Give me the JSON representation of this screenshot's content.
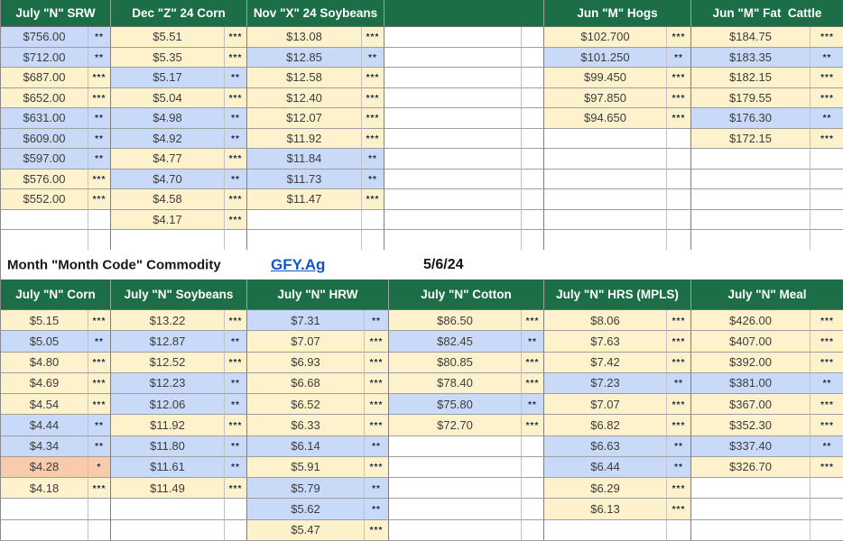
{
  "band": {
    "caption": "Month \"Month Code\" Commodity",
    "link_label": "GFY.Ag",
    "date": "5/6/24"
  },
  "colors": {
    "header_green": "#1b6e46",
    "cell_yellow": "#fdf2cc",
    "cell_blue": "#c9daf8",
    "cell_orange": "#f8cbad",
    "link_blue": "#1155cc"
  },
  "tables": [
    {
      "id": "top-futures-table",
      "rows": 11,
      "columns": [
        {
          "header": "July \"N\" SRW",
          "cells": [
            {
              "value": "$756.00",
              "stars": "**",
              "bg": "blue"
            },
            {
              "value": "$712.00",
              "stars": "**",
              "bg": "blue"
            },
            {
              "value": "$687.00",
              "stars": "***",
              "bg": "yellow"
            },
            {
              "value": "$652.00",
              "stars": "***",
              "bg": "yellow"
            },
            {
              "value": "$631.00",
              "stars": "**",
              "bg": "blue"
            },
            {
              "value": "$609.00",
              "stars": "**",
              "bg": "blue"
            },
            {
              "value": "$597.00",
              "stars": "**",
              "bg": "blue"
            },
            {
              "value": "$576.00",
              "stars": "***",
              "bg": "yellow"
            },
            {
              "value": "$552.00",
              "stars": "***",
              "bg": "yellow"
            },
            null,
            null
          ]
        },
        {
          "header": "Dec \"Z\" 24 Corn",
          "cells": [
            {
              "value": "$5.51",
              "stars": "***",
              "bg": "yellow"
            },
            {
              "value": "$5.35",
              "stars": "***",
              "bg": "yellow"
            },
            {
              "value": "$5.17",
              "stars": "**",
              "bg": "blue"
            },
            {
              "value": "$5.04",
              "stars": "***",
              "bg": "yellow"
            },
            {
              "value": "$4.98",
              "stars": "**",
              "bg": "blue"
            },
            {
              "value": "$4.92",
              "stars": "**",
              "bg": "blue"
            },
            {
              "value": "$4.77",
              "stars": "***",
              "bg": "yellow"
            },
            {
              "value": "$4.70",
              "stars": "**",
              "bg": "blue"
            },
            {
              "value": "$4.58",
              "stars": "***",
              "bg": "yellow"
            },
            {
              "value": "$4.17",
              "stars": "***",
              "bg": "yellow"
            },
            null
          ]
        },
        {
          "header": "Nov \"X\" 24 Soybeans",
          "cells": [
            {
              "value": "$13.08",
              "stars": "***",
              "bg": "yellow"
            },
            {
              "value": "$12.85",
              "stars": "**",
              "bg": "blue"
            },
            {
              "value": "$12.58",
              "stars": "***",
              "bg": "yellow"
            },
            {
              "value": "$12.40",
              "stars": "***",
              "bg": "yellow"
            },
            {
              "value": "$12.07",
              "stars": "***",
              "bg": "yellow"
            },
            {
              "value": "$11.92",
              "stars": "***",
              "bg": "yellow"
            },
            {
              "value": "$11.84",
              "stars": "**",
              "bg": "blue"
            },
            {
              "value": "$11.73",
              "stars": "**",
              "bg": "blue"
            },
            {
              "value": "$11.47",
              "stars": "***",
              "bg": "yellow"
            },
            null,
            null
          ]
        },
        {
          "header": "",
          "cells": [
            null,
            null,
            null,
            null,
            null,
            null,
            null,
            null,
            null,
            null,
            null
          ]
        },
        {
          "header": "Jun \"M\" Hogs",
          "cells": [
            {
              "value": "$102.700",
              "stars": "***",
              "bg": "yellow"
            },
            {
              "value": "$101.250",
              "stars": "**",
              "bg": "blue"
            },
            {
              "value": "$99.450",
              "stars": "***",
              "bg": "yellow"
            },
            {
              "value": "$97.850",
              "stars": "***",
              "bg": "yellow"
            },
            {
              "value": "$94.650",
              "stars": "***",
              "bg": "yellow"
            },
            null,
            null,
            null,
            null,
            null,
            null
          ]
        },
        {
          "header": "Jun \"M\" Fat  Cattle",
          "cells": [
            {
              "value": "$184.75",
              "stars": "***",
              "bg": "yellow"
            },
            {
              "value": "$183.35",
              "stars": "**",
              "bg": "blue"
            },
            {
              "value": "$182.15",
              "stars": "***",
              "bg": "yellow"
            },
            {
              "value": "$179.55",
              "stars": "***",
              "bg": "yellow"
            },
            {
              "value": "$176.30",
              "stars": "**",
              "bg": "blue"
            },
            {
              "value": "$172.15",
              "stars": "***",
              "bg": "yellow"
            },
            null,
            null,
            null,
            null,
            null
          ]
        }
      ]
    },
    {
      "id": "bottom-futures-table",
      "rows": 11,
      "columns": [
        {
          "header": "July \"N\" Corn",
          "cells": [
            {
              "value": "$5.15",
              "stars": "***",
              "bg": "yellow"
            },
            {
              "value": "$5.05",
              "stars": "**",
              "bg": "blue"
            },
            {
              "value": "$4.80",
              "stars": "***",
              "bg": "yellow"
            },
            {
              "value": "$4.69",
              "stars": "***",
              "bg": "yellow"
            },
            {
              "value": "$4.54",
              "stars": "***",
              "bg": "yellow"
            },
            {
              "value": "$4.44",
              "stars": "**",
              "bg": "blue"
            },
            {
              "value": "$4.34",
              "stars": "**",
              "bg": "blue"
            },
            {
              "value": "$4.28",
              "stars": "*",
              "bg": "orange"
            },
            {
              "value": "$4.18",
              "stars": "***",
              "bg": "yellow"
            },
            null,
            null
          ]
        },
        {
          "header": "July \"N\" Soybeans",
          "cells": [
            {
              "value": "$13.22",
              "stars": "***",
              "bg": "yellow"
            },
            {
              "value": "$12.87",
              "stars": "**",
              "bg": "blue"
            },
            {
              "value": "$12.52",
              "stars": "***",
              "bg": "yellow"
            },
            {
              "value": "$12.23",
              "stars": "**",
              "bg": "blue"
            },
            {
              "value": "$12.06",
              "stars": "**",
              "bg": "blue"
            },
            {
              "value": "$11.92",
              "stars": "***",
              "bg": "yellow"
            },
            {
              "value": "$11.80",
              "stars": "**",
              "bg": "blue"
            },
            {
              "value": "$11.61",
              "stars": "**",
              "bg": "blue"
            },
            {
              "value": "$11.49",
              "stars": "***",
              "bg": "yellow"
            },
            null,
            null
          ]
        },
        {
          "header": "July \"N\" HRW",
          "cells": [
            {
              "value": "$7.31",
              "stars": "**",
              "bg": "blue"
            },
            {
              "value": "$7.07",
              "stars": "***",
              "bg": "yellow"
            },
            {
              "value": "$6.93",
              "stars": "***",
              "bg": "yellow"
            },
            {
              "value": "$6.68",
              "stars": "***",
              "bg": "yellow"
            },
            {
              "value": "$6.52",
              "stars": "***",
              "bg": "yellow"
            },
            {
              "value": "$6.33",
              "stars": "***",
              "bg": "yellow"
            },
            {
              "value": "$6.14",
              "stars": "**",
              "bg": "blue"
            },
            {
              "value": "$5.91",
              "stars": "***",
              "bg": "yellow"
            },
            {
              "value": "$5.79",
              "stars": "**",
              "bg": "blue"
            },
            {
              "value": "$5.62",
              "stars": "**",
              "bg": "blue"
            },
            {
              "value": "$5.47",
              "stars": "***",
              "bg": "yellow"
            }
          ]
        },
        {
          "header": "July \"N\" Cotton",
          "cells": [
            {
              "value": "$86.50",
              "stars": "***",
              "bg": "yellow"
            },
            {
              "value": "$82.45",
              "stars": "**",
              "bg": "blue"
            },
            {
              "value": "$80.85",
              "stars": "***",
              "bg": "yellow"
            },
            {
              "value": "$78.40",
              "stars": "***",
              "bg": "yellow"
            },
            {
              "value": "$75.80",
              "stars": "**",
              "bg": "blue"
            },
            {
              "value": "$72.70",
              "stars": "***",
              "bg": "yellow"
            },
            null,
            null,
            null,
            null,
            null
          ]
        },
        {
          "header": "July \"N\" HRS (MPLS)",
          "cells": [
            {
              "value": "$8.06",
              "stars": "***",
              "bg": "yellow"
            },
            {
              "value": "$7.63",
              "stars": "***",
              "bg": "yellow"
            },
            {
              "value": "$7.42",
              "stars": "***",
              "bg": "yellow"
            },
            {
              "value": "$7.23",
              "stars": "**",
              "bg": "blue"
            },
            {
              "value": "$7.07",
              "stars": "***",
              "bg": "yellow"
            },
            {
              "value": "$6.82",
              "stars": "***",
              "bg": "yellow"
            },
            {
              "value": "$6.63",
              "stars": "**",
              "bg": "blue"
            },
            {
              "value": "$6.44",
              "stars": "**",
              "bg": "blue"
            },
            {
              "value": "$6.29",
              "stars": "***",
              "bg": "yellow"
            },
            {
              "value": "$6.13",
              "stars": "***",
              "bg": "yellow"
            },
            null
          ]
        },
        {
          "header": "July \"N\" Meal",
          "cells": [
            {
              "value": "$426.00",
              "stars": "***",
              "bg": "yellow"
            },
            {
              "value": "$407.00",
              "stars": "***",
              "bg": "yellow"
            },
            {
              "value": "$392.00",
              "stars": "***",
              "bg": "yellow"
            },
            {
              "value": "$381.00",
              "stars": "**",
              "bg": "blue"
            },
            {
              "value": "$367.00",
              "stars": "***",
              "bg": "yellow"
            },
            {
              "value": "$352.30",
              "stars": "***",
              "bg": "yellow"
            },
            {
              "value": "$337.40",
              "stars": "**",
              "bg": "blue"
            },
            {
              "value": "$326.70",
              "stars": "***",
              "bg": "yellow"
            },
            null,
            null,
            null
          ]
        }
      ]
    }
  ]
}
